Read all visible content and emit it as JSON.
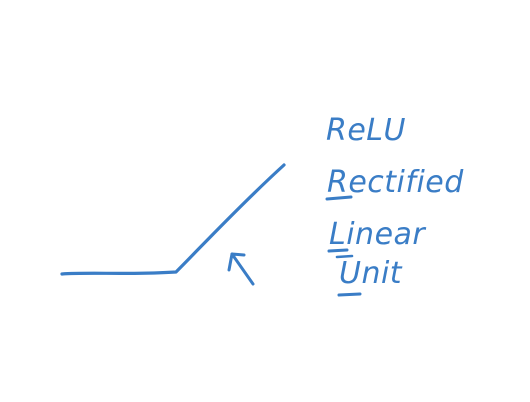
{
  "ink_color": "#3a7dc6",
  "labels": {
    "title": "ReLU",
    "word1": "Rectified",
    "word2": "Linear",
    "word3": "Unit"
  },
  "shapes": {
    "relu_curve": "relu-function-line",
    "arrow": "up-arrow-pointing-at-kink"
  }
}
